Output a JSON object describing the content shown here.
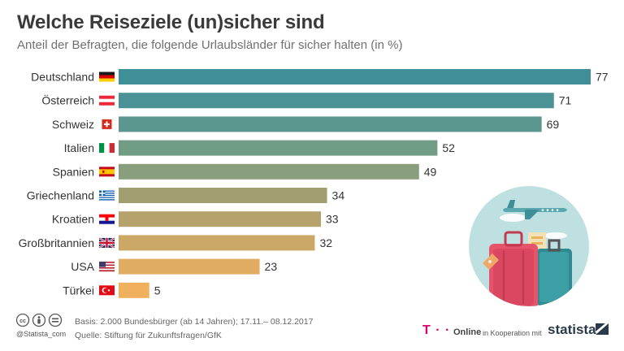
{
  "title": "Welche Reiseziele (un)sicher sind",
  "subtitle": "Anteil der Befragten, die folgende Urlaubsländer für sicher halten (in %)",
  "chart_data": {
    "type": "bar",
    "orientation": "horizontal",
    "title": "Welche Reiseziele (un)sicher sind",
    "subtitle": "Anteil der Befragten, die folgende Urlaubsländer für sicher halten (in %)",
    "categories": [
      "Deutschland",
      "Österreich",
      "Schweiz",
      "Italien",
      "Spanien",
      "Griechenland",
      "Kroatien",
      "Großbritannien",
      "USA",
      "Türkei"
    ],
    "values": [
      77,
      71,
      69,
      52,
      49,
      34,
      33,
      32,
      23,
      5
    ],
    "value_labels": [
      "77",
      "71",
      "69",
      "52",
      "49",
      "34",
      "33",
      "32",
      "23",
      "5"
    ],
    "flags": [
      "flag-germany",
      "flag-austria",
      "flag-switzerland",
      "flag-italy",
      "flag-spain",
      "flag-greece",
      "flag-croatia",
      "flag-uk",
      "flag-usa",
      "flag-turkey"
    ],
    "bar_colors": [
      "#3f8e98",
      "#4a9296",
      "#5b978f",
      "#719c85",
      "#889e7d",
      "#a19e72",
      "#b5a26d",
      "#cca867",
      "#e0ac62",
      "#efb15d"
    ],
    "xlim": [
      0,
      77
    ],
    "grid": false,
    "legend": "none",
    "xlabel": "",
    "ylabel": ""
  },
  "illustration": "travel-illustration",
  "footer": {
    "license_icons": [
      "cc-icon",
      "by-icon",
      "nd-icon"
    ],
    "handle": "@Statista_com",
    "basis": "Basis: 2.000 Bundesbürger (ab 14 Jahren); 17.11.– 08.12.2017",
    "source": "Quelle: Stiftung für Zukunftsfragen/GfK",
    "brand_t": "T · ·",
    "brand_online": "Online",
    "cooperation": "in Kooperation mit",
    "statista": "statista"
  }
}
